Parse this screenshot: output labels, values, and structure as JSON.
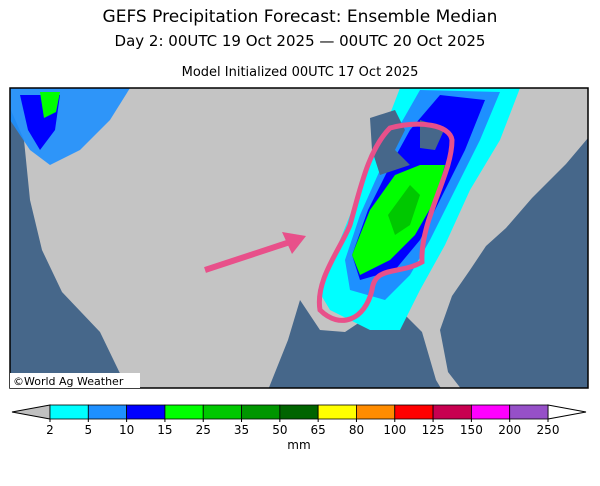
{
  "header": {
    "title": "GEFS Precipitation Forecast: Ensemble Median",
    "subtitle": "Day 2: 00UTC 19 Oct 2025 — 00UTC 20 Oct 2025",
    "init": "Model Initialized 00UTC 17 Oct 2025"
  },
  "map": {
    "credit": "©World Ag Weather"
  },
  "colorbar": {
    "ticks": [
      2,
      5,
      10,
      15,
      25,
      35,
      50,
      65,
      80,
      100,
      125,
      150,
      200,
      250
    ],
    "colors": [
      "#00ffff",
      "#1e90ff",
      "#0000ff",
      "#00ff00",
      "#00c800",
      "#009600",
      "#006400",
      "#ffff00",
      "#ff8c00",
      "#ff0000",
      "#c80050",
      "#ff00ff",
      "#9650c8"
    ],
    "under_color": "#c0c0c0",
    "over_color": "#ffffff",
    "unit": "mm"
  }
}
